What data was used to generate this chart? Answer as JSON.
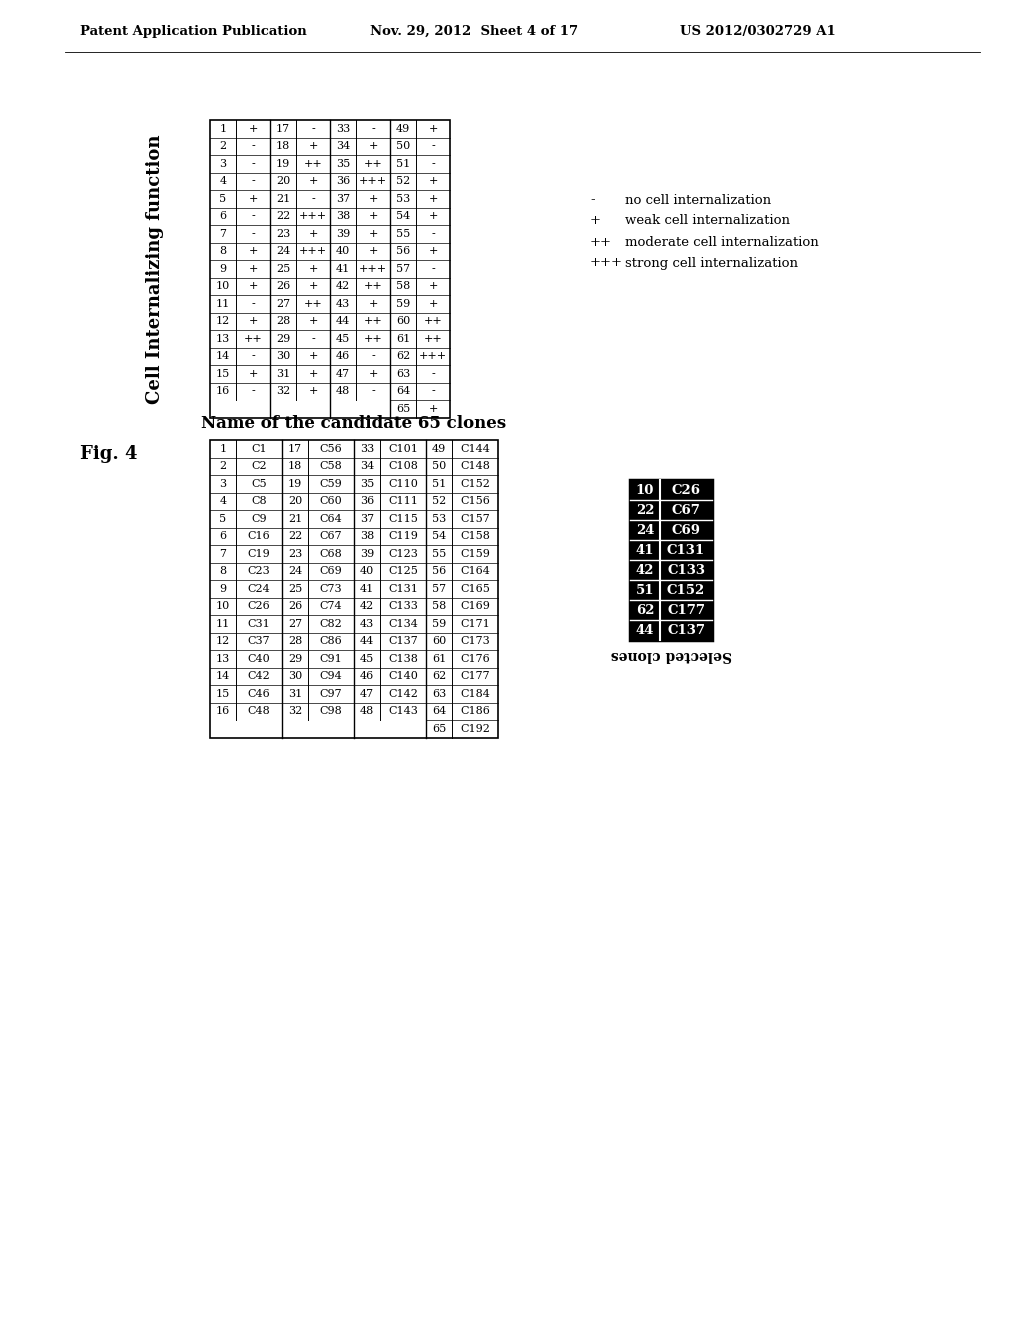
{
  "header_left": "Patent Application Publication",
  "header_middle": "Nov. 29, 2012  Sheet 4 of 17",
  "header_right": "US 2012/0302729 A1",
  "fig_label": "Fig. 4",
  "table1_title": "Name of the candidate 65 clones",
  "table2_title": "Cell Internalizing function",
  "legend_items": [
    [
      "-",
      "no cell internalization"
    ],
    [
      "+",
      "weak cell internalization"
    ],
    [
      "++",
      "moderate cell internalization"
    ],
    [
      "+++",
      "strong cell internalization"
    ]
  ],
  "selected_clones_label": "Selected clones",
  "selected_rows": [
    {
      "num": "10",
      "clone": "C26"
    },
    {
      "num": "22",
      "clone": "C67"
    },
    {
      "num": "24",
      "clone": "C69"
    },
    {
      "num": "41",
      "clone": "C131"
    },
    {
      "num": "42",
      "clone": "C133"
    },
    {
      "num": "51",
      "clone": "C152"
    },
    {
      "num": "62",
      "clone": "C177"
    },
    {
      "num": "44",
      "clone": "C137"
    }
  ],
  "t1_groups": [
    {
      "idx": [
        "1",
        "2",
        "3",
        "4",
        "5",
        "6",
        "7",
        "8",
        "9",
        "10",
        "11",
        "12",
        "13",
        "14",
        "15",
        "16"
      ],
      "names": [
        "C1",
        "C2",
        "C5",
        "C8",
        "C9",
        "C16",
        "C19",
        "C23",
        "C24",
        "C26",
        "C31",
        "C37",
        "C40",
        "C42",
        "C46",
        "C48"
      ]
    },
    {
      "idx": [
        "17",
        "18",
        "19",
        "20",
        "21",
        "22",
        "23",
        "24",
        "25",
        "26",
        "27",
        "28",
        "29",
        "30",
        "31",
        "32"
      ],
      "names": [
        "C56",
        "C58",
        "C59",
        "C60",
        "C64",
        "C67",
        "C68",
        "C69",
        "C73",
        "C74",
        "C82",
        "C86",
        "C91",
        "C94",
        "C97",
        "C98"
      ]
    },
    {
      "idx": [
        "33",
        "34",
        "35",
        "36",
        "37",
        "38",
        "39",
        "40",
        "41",
        "42",
        "43",
        "44",
        "45",
        "46",
        "47",
        "48"
      ],
      "names": [
        "C101",
        "C108",
        "C110",
        "C111",
        "C115",
        "C119",
        "C123",
        "C125",
        "C131",
        "C133",
        "C134",
        "C137",
        "C138",
        "C140",
        "C142",
        "C143"
      ]
    },
    {
      "idx": [
        "49",
        "50",
        "51",
        "52",
        "53",
        "54",
        "55",
        "56",
        "57",
        "58",
        "59",
        "60",
        "61",
        "62",
        "63",
        "64",
        "65"
      ],
      "names": [
        "C144",
        "C148",
        "C152",
        "C156",
        "C157",
        "C158",
        "C159",
        "C164",
        "C165",
        "C169",
        "C171",
        "C173",
        "C176",
        "C177",
        "C184",
        "C186",
        "C192"
      ]
    }
  ],
  "t2_groups": [
    {
      "idx": [
        "1",
        "2",
        "3",
        "4",
        "5",
        "6",
        "7",
        "8",
        "9",
        "10",
        "11",
        "12",
        "13",
        "14",
        "15",
        "16"
      ],
      "vals": [
        "+",
        "-",
        "-",
        "-",
        "+",
        "-",
        "-",
        "+",
        "+",
        "+",
        "-",
        "+",
        "++",
        "-",
        "+",
        "-"
      ]
    },
    {
      "idx": [
        "17",
        "18",
        "19",
        "20",
        "21",
        "22",
        "23",
        "24",
        "25",
        "26",
        "27",
        "28",
        "29",
        "30",
        "31",
        "32"
      ],
      "vals": [
        "-",
        "+",
        "++",
        "+",
        "-",
        "+++",
        "+",
        "+++",
        "+",
        "+",
        "++",
        "+",
        "-",
        "+",
        "+",
        "+"
      ]
    },
    {
      "idx": [
        "33",
        "34",
        "35",
        "36",
        "37",
        "38",
        "39",
        "40",
        "41",
        "42",
        "43",
        "44",
        "45",
        "46",
        "47",
        "48"
      ],
      "vals": [
        "-",
        "+",
        "++",
        "+++",
        "+",
        "+",
        "+",
        "+",
        "+++",
        "++",
        "+",
        "++",
        "++",
        "-",
        "+",
        "-"
      ]
    },
    {
      "idx": [
        "49",
        "50",
        "51",
        "52",
        "53",
        "54",
        "55",
        "56",
        "57",
        "58",
        "59",
        "60",
        "61",
        "62",
        "63",
        "64",
        "65"
      ],
      "vals": [
        "+",
        "-",
        "-",
        "+",
        "+",
        "+",
        "-",
        "+",
        "-",
        "+",
        "+",
        "++",
        "++",
        "+++",
        "-",
        "-",
        "+"
      ]
    }
  ]
}
